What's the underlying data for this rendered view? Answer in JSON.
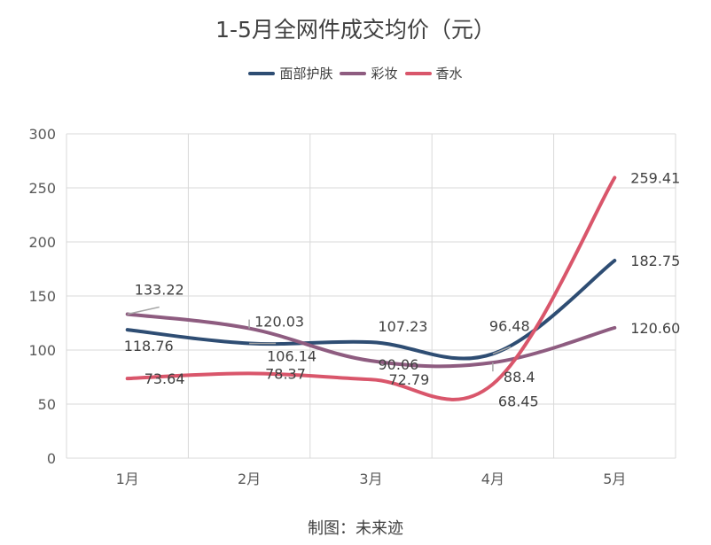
{
  "chart_data": {
    "type": "line",
    "title": "1-5月全网件成交均价（元）",
    "categories": [
      "1月",
      "2月",
      "3月",
      "4月",
      "5月"
    ],
    "ylim": [
      0,
      300
    ],
    "yticks": [
      0,
      50,
      100,
      150,
      200,
      250,
      300
    ],
    "grid": true,
    "legend_position": "top",
    "series": [
      {
        "name": "面部护肤",
        "color": "#2e4d73",
        "values": [
          118.76,
          106.14,
          107.23,
          96.48,
          182.75
        ],
        "labels": [
          "118.76",
          "106.14",
          "107.23",
          "96.48",
          "182.75"
        ]
      },
      {
        "name": "彩妆",
        "color": "#8e5c80",
        "values": [
          133.22,
          120.03,
          90.06,
          88.4,
          120.6
        ],
        "labels": [
          "133.22",
          "120.03",
          "90.06",
          "88.4",
          "120.60"
        ]
      },
      {
        "name": "香水",
        "color": "#d9566b",
        "values": [
          73.64,
          78.37,
          72.79,
          68.45,
          259.41
        ],
        "labels": [
          "73.64",
          "78.37",
          "72.79",
          "68.45",
          "259.41"
        ]
      }
    ]
  },
  "credit": "制图：未来迹"
}
